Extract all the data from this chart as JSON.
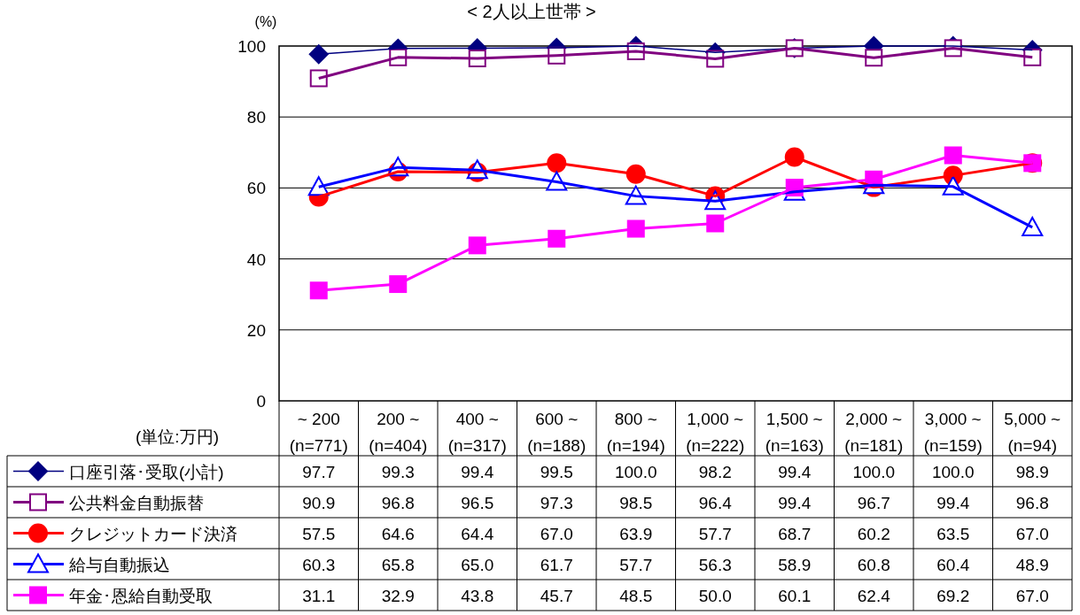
{
  "chart_data": {
    "type": "line",
    "title": "< 2人以上世帯 >",
    "ylabel": "(%)",
    "categories": [
      "~ 200\n(n=771)",
      "200 ~\n(n=404)",
      "400 ~\n(n=317)",
      "600 ~\n(n=188)",
      "800 ~\n(n=194)",
      "1,000 ~\n(n=222)",
      "1,500 ~\n(n=163)",
      "2,000 ~\n(n=181)",
      "3,000 ~\n(n=159)",
      "5,000 ~\n(n=94)"
    ],
    "series": [
      {
        "name": "口座引落･受取(小計)",
        "color": "#000080",
        "marker": "diamond",
        "values": [
          97.7,
          99.3,
          99.4,
          99.5,
          100.0,
          98.2,
          99.4,
          100.0,
          100.0,
          98.9
        ],
        "value_labels": [
          "97.7",
          "99.3",
          "99.4",
          "99.5",
          "100.0",
          "98.2",
          "99.4",
          "100.0",
          "100.0",
          "98.9"
        ]
      },
      {
        "name": "公共料金自動振替",
        "color": "#800080",
        "marker": "square",
        "values": [
          90.9,
          96.8,
          96.5,
          97.3,
          98.5,
          96.4,
          99.4,
          96.7,
          99.4,
          96.8
        ],
        "value_labels": [
          "90.9",
          "96.8",
          "96.5",
          "97.3",
          "98.5",
          "96.4",
          "99.4",
          "96.7",
          "99.4",
          "96.8"
        ]
      },
      {
        "name": "クレジットカード決済",
        "color": "#ff0000",
        "marker": "circle",
        "values": [
          57.5,
          64.6,
          64.4,
          67.0,
          63.9,
          57.7,
          68.7,
          60.2,
          63.5,
          67.0
        ],
        "value_labels": [
          "57.5",
          "64.6",
          "64.4",
          "67.0",
          "63.9",
          "57.7",
          "68.7",
          "60.2",
          "63.5",
          "67.0"
        ]
      },
      {
        "name": "給与自動振込",
        "color": "#0000ff",
        "marker": "triangle",
        "values": [
          60.3,
          65.8,
          65.0,
          61.7,
          57.7,
          56.3,
          58.9,
          60.8,
          60.4,
          48.9
        ],
        "value_labels": [
          "60.3",
          "65.8",
          "65.0",
          "61.7",
          "57.7",
          "56.3",
          "58.9",
          "60.8",
          "60.4",
          "48.9"
        ]
      },
      {
        "name": "年金･恩給自動受取",
        "color": "#ff00ff",
        "marker": "square",
        "values": [
          31.1,
          32.9,
          43.8,
          45.7,
          48.5,
          50.0,
          60.1,
          62.4,
          69.2,
          67.0
        ],
        "value_labels": [
          "31.1",
          "32.9",
          "43.8",
          "45.7",
          "48.5",
          "50.0",
          "60.1",
          "62.4",
          "69.2",
          "67.0"
        ]
      }
    ],
    "ylim": [
      0,
      100
    ],
    "yticks": [
      0,
      20,
      40,
      60,
      80,
      100
    ],
    "grid": "y",
    "legend": "bottom left",
    "annotations": [
      "(単位:万円)"
    ]
  }
}
